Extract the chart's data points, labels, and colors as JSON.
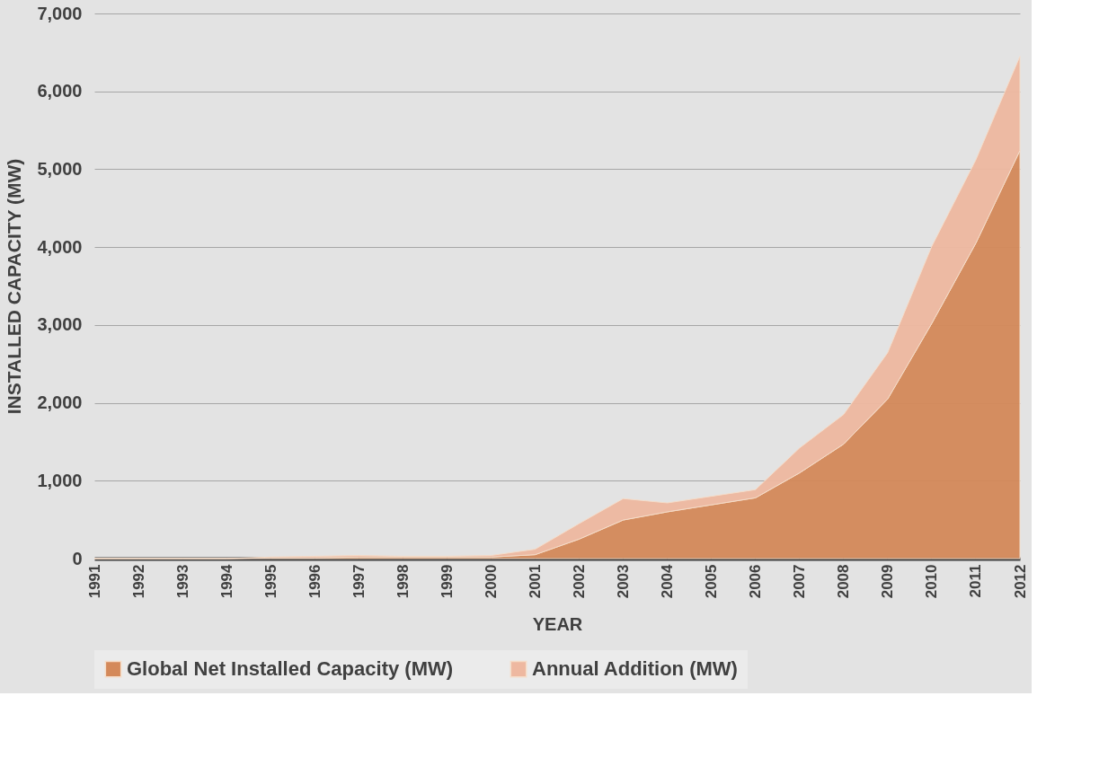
{
  "chart_data": {
    "type": "area",
    "stacked": true,
    "xlabel": "YEAR",
    "ylabel": "INSTALLED CAPACITY (MW)",
    "categories": [
      "1991",
      "1992",
      "1993",
      "1994",
      "1995",
      "1996",
      "1997",
      "1998",
      "1999",
      "2000",
      "2001",
      "2002",
      "2003",
      "2004",
      "2005",
      "2006",
      "2007",
      "2008",
      "2009",
      "2010",
      "2011",
      "2012"
    ],
    "series": [
      {
        "name": "Global Net Installed Capacity (MW)",
        "color": "#d4895a",
        "values": [
          0,
          0,
          0,
          0,
          10,
          10,
          20,
          20,
          20,
          20,
          50,
          250,
          495,
          600,
          690,
          780,
          1100,
          1470,
          2050,
          3020,
          4050,
          5240
        ]
      },
      {
        "name": "Annual Addition (MW)",
        "color": "#eeb8a0",
        "values": [
          0,
          0,
          0,
          0,
          10,
          20,
          20,
          10,
          10,
          20,
          70,
          200,
          275,
          115,
          110,
          105,
          320,
          380,
          595,
          990,
          1070,
          1210
        ]
      }
    ],
    "ylim": [
      0,
      7000
    ],
    "yticks": [
      {
        "value": 0,
        "label": "0"
      },
      {
        "value": 1000,
        "label": "1,000"
      },
      {
        "value": 2000,
        "label": "2,000"
      },
      {
        "value": 3000,
        "label": "3,000"
      },
      {
        "value": 4000,
        "label": "4,000"
      },
      {
        "value": 5000,
        "label": "5,000"
      },
      {
        "value": 6000,
        "label": "6,000"
      },
      {
        "value": 7000,
        "label": "7,000"
      }
    ],
    "grid": "y",
    "legend": "bottom"
  }
}
